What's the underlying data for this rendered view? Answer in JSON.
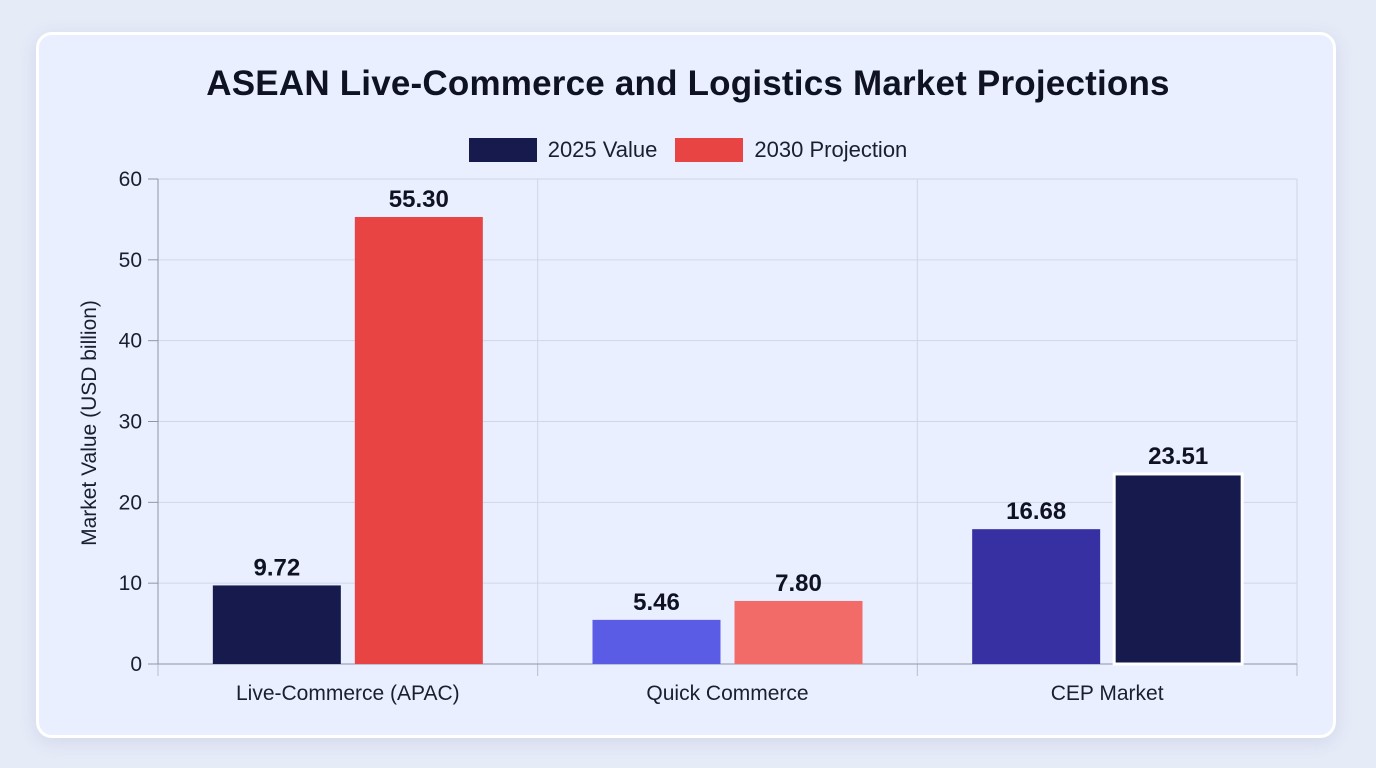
{
  "chart_data": {
    "type": "bar",
    "title": "ASEAN Live-Commerce and Logistics Market Projections",
    "xlabel": "",
    "ylabel": "Market Value (USD billion)",
    "ylim": [
      0,
      60
    ],
    "yticks": [
      0,
      10,
      20,
      30,
      40,
      50,
      60
    ],
    "grid": true,
    "legend_position": "top-center",
    "categories": [
      "Live-Commerce (APAC)",
      "Quick Commerce",
      "CEP Market"
    ],
    "series": [
      {
        "name": "2025 Value",
        "legend_color": "#161a4d",
        "values": [
          9.72,
          5.46,
          16.68
        ],
        "labels": [
          "9.72",
          "5.46",
          "16.68"
        ],
        "bar_colors": [
          "#161a4d",
          "#5a5ce6",
          "#3730a3"
        ]
      },
      {
        "name": "2030 Projection",
        "legend_color": "#e84444",
        "values": [
          55.3,
          7.8,
          23.51
        ],
        "labels": [
          "55.30",
          "7.80",
          "23.51"
        ],
        "bar_colors": [
          "#e84444",
          "#f26b68",
          "#161a4d"
        ]
      }
    ]
  }
}
